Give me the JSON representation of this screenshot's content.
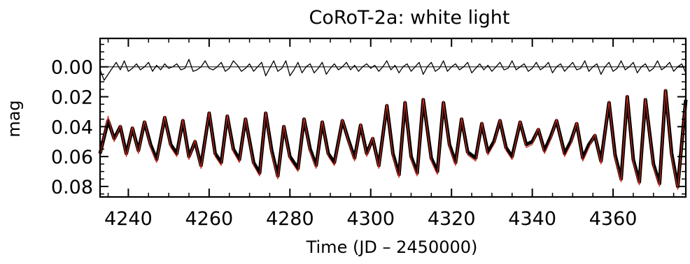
{
  "chart_data": {
    "type": "line",
    "title": "CoRoT-2a: white light",
    "xlabel": "Time (JD – 2450000)",
    "ylabel": "mag",
    "xlim": [
      4233,
      4378
    ],
    "ylim": [
      0.087,
      -0.019
    ],
    "y_inverted": true,
    "xticks": [
      "4240",
      "4260",
      "4280",
      "4300",
      "4320",
      "4340",
      "4360"
    ],
    "yticks": [
      "0.00",
      "0.02",
      "0.04",
      "0.06",
      "0.08"
    ],
    "grid": false,
    "series": [
      {
        "role": "light curve (observed)",
        "color": "#000000",
        "x": [
          4233,
          4235,
          4236.5,
          4238,
          4239.5,
          4241,
          4242.5,
          4244,
          4245.5,
          4247,
          4249,
          4250.5,
          4252,
          4253.5,
          4255,
          4256.5,
          4258,
          4260,
          4261.5,
          4263,
          4264.5,
          4266,
          4267.5,
          4269,
          4271,
          4272.5,
          4274,
          4275.5,
          4277,
          4278.5,
          4280,
          4282,
          4283.5,
          4285,
          4286.5,
          4288,
          4289.5,
          4291,
          4293,
          4294.5,
          4296,
          4297.5,
          4299,
          4300.5,
          4302,
          4304,
          4305.5,
          4307,
          4308.5,
          4310,
          4311.5,
          4313,
          4315,
          4316.5,
          4318,
          4319.5,
          4321,
          4322.5,
          4324,
          4326,
          4327.5,
          4329,
          4330.5,
          4332,
          4333.5,
          4335,
          4337,
          4338.5,
          4340,
          4341.5,
          4343,
          4344.5,
          4346,
          4348,
          4349.5,
          4351,
          4352.5,
          4354,
          4355.5,
          4357,
          4359,
          4360.5,
          4362,
          4363.5,
          4365,
          4366.5,
          4368,
          4370,
          4371.5,
          4373,
          4374.5,
          4376,
          4378
        ],
        "y": [
          0.058,
          0.036,
          0.048,
          0.04,
          0.058,
          0.041,
          0.056,
          0.037,
          0.052,
          0.062,
          0.034,
          0.052,
          0.058,
          0.036,
          0.06,
          0.05,
          0.066,
          0.031,
          0.058,
          0.064,
          0.033,
          0.055,
          0.062,
          0.035,
          0.064,
          0.071,
          0.031,
          0.056,
          0.073,
          0.04,
          0.06,
          0.068,
          0.035,
          0.055,
          0.066,
          0.037,
          0.058,
          0.064,
          0.036,
          0.049,
          0.061,
          0.039,
          0.058,
          0.048,
          0.066,
          0.026,
          0.058,
          0.072,
          0.024,
          0.06,
          0.071,
          0.022,
          0.061,
          0.07,
          0.024,
          0.052,
          0.064,
          0.035,
          0.057,
          0.061,
          0.038,
          0.057,
          0.05,
          0.036,
          0.054,
          0.06,
          0.037,
          0.052,
          0.05,
          0.042,
          0.056,
          0.047,
          0.036,
          0.058,
          0.05,
          0.038,
          0.061,
          0.052,
          0.046,
          0.063,
          0.024,
          0.059,
          0.075,
          0.02,
          0.062,
          0.077,
          0.022,
          0.065,
          0.078,
          0.016,
          0.058,
          0.08,
          0.022
        ]
      },
      {
        "role": "model fit",
        "color": "#d42a1c",
        "x": [
          4233,
          4235,
          4236.5,
          4238,
          4239.5,
          4241,
          4242.5,
          4244,
          4245.5,
          4247,
          4249,
          4250.5,
          4252,
          4253.5,
          4255,
          4256.5,
          4258,
          4260,
          4261.5,
          4263,
          4264.5,
          4266,
          4267.5,
          4269,
          4271,
          4272.5,
          4274,
          4275.5,
          4277,
          4278.5,
          4280,
          4282,
          4283.5,
          4285,
          4286.5,
          4288,
          4289.5,
          4291,
          4293,
          4294.5,
          4296,
          4297.5,
          4299,
          4300.5,
          4302,
          4304,
          4305.5,
          4307,
          4308.5,
          4310,
          4311.5,
          4313,
          4315,
          4316.5,
          4318,
          4319.5,
          4321,
          4322.5,
          4324,
          4326,
          4327.5,
          4329,
          4330.5,
          4332,
          4333.5,
          4335,
          4337,
          4338.5,
          4340,
          4341.5,
          4343,
          4344.5,
          4346,
          4348,
          4349.5,
          4351,
          4352.5,
          4354,
          4355.5,
          4357,
          4359,
          4360.5,
          4362,
          4363.5,
          4365,
          4366.5,
          4368,
          4370,
          4371.5,
          4373,
          4374.5,
          4376,
          4378
        ],
        "y": [
          0.06,
          0.033,
          0.05,
          0.039,
          0.06,
          0.04,
          0.058,
          0.036,
          0.054,
          0.064,
          0.033,
          0.054,
          0.06,
          0.035,
          0.062,
          0.049,
          0.068,
          0.03,
          0.06,
          0.066,
          0.032,
          0.057,
          0.064,
          0.034,
          0.066,
          0.073,
          0.03,
          0.058,
          0.075,
          0.039,
          0.062,
          0.07,
          0.034,
          0.057,
          0.068,
          0.036,
          0.06,
          0.066,
          0.035,
          0.05,
          0.063,
          0.038,
          0.06,
          0.047,
          0.068,
          0.025,
          0.06,
          0.074,
          0.023,
          0.062,
          0.073,
          0.021,
          0.063,
          0.072,
          0.023,
          0.054,
          0.066,
          0.034,
          0.059,
          0.063,
          0.037,
          0.059,
          0.052,
          0.035,
          0.056,
          0.062,
          0.036,
          0.054,
          0.052,
          0.041,
          0.058,
          0.049,
          0.035,
          0.06,
          0.052,
          0.037,
          0.063,
          0.054,
          0.045,
          0.065,
          0.023,
          0.061,
          0.077,
          0.019,
          0.064,
          0.079,
          0.021,
          0.067,
          0.08,
          0.015,
          0.06,
          0.082,
          0.021
        ]
      },
      {
        "role": "residuals",
        "color": "#000000",
        "x": [
          4233,
          4234,
          4235,
          4236,
          4237,
          4238,
          4239,
          4240,
          4241,
          4242,
          4243,
          4244,
          4245,
          4246,
          4247,
          4248,
          4249,
          4250,
          4251,
          4252,
          4253,
          4254,
          4255,
          4256,
          4257,
          4258,
          4259,
          4260,
          4261,
          4262,
          4263,
          4264,
          4265,
          4266,
          4267,
          4268,
          4269,
          4270,
          4271,
          4272,
          4273,
          4274,
          4275,
          4276,
          4277,
          4278,
          4279,
          4280,
          4281,
          4282,
          4283,
          4284,
          4285,
          4286,
          4287,
          4288,
          4289,
          4290,
          4291,
          4292,
          4293,
          4294,
          4295,
          4296,
          4297,
          4298,
          4299,
          4300,
          4301,
          4302,
          4303,
          4304,
          4305,
          4306,
          4307,
          4308,
          4309,
          4310,
          4311,
          4312,
          4313,
          4314,
          4315,
          4316,
          4317,
          4318,
          4319,
          4320,
          4321,
          4322,
          4323,
          4324,
          4325,
          4326,
          4327,
          4328,
          4329,
          4330,
          4331,
          4332,
          4333,
          4334,
          4335,
          4336,
          4337,
          4338,
          4339,
          4340,
          4341,
          4342,
          4343,
          4344,
          4345,
          4346,
          4347,
          4348,
          4349,
          4350,
          4351,
          4352,
          4353,
          4354,
          4355,
          4356,
          4357,
          4358,
          4359,
          4360,
          4361,
          4362,
          4363,
          4364,
          4365,
          4366,
          4367,
          4368,
          4369,
          4370,
          4371,
          4372,
          4373,
          4374,
          4375,
          4376,
          4377,
          4378
        ],
        "y": [
          0.002,
          0.009,
          0.005,
          0.001,
          -0.003,
          0.002,
          -0.004,
          0.003,
          0.001,
          -0.002,
          0.002,
          0.0,
          -0.003,
          0.003,
          -0.001,
          0.002,
          -0.002,
          0.001,
          0.0,
          -0.002,
          0.002,
          0.001,
          -0.005,
          0.003,
          0.002,
          0.0,
          -0.004,
          0.001,
          0.002,
          0.0,
          -0.003,
          0.003,
          0.001,
          -0.004,
          -0.001,
          0.003,
          0.001,
          -0.002,
          0.003,
          0.0,
          -0.003,
          0.006,
          0.001,
          -0.004,
          0.003,
          0.001,
          -0.004,
          0.006,
          0.002,
          -0.003,
          0.004,
          0.0,
          -0.002,
          0.004,
          0.001,
          -0.003,
          0.005,
          0.001,
          -0.002,
          0.002,
          0.0,
          -0.003,
          0.002,
          -0.001,
          0.003,
          0.0,
          -0.002,
          0.001,
          -0.001,
          0.003,
          0.0,
          -0.004,
          0.002,
          -0.001,
          0.004,
          0.0,
          -0.002,
          0.003,
          0.0,
          -0.003,
          0.005,
          0.0,
          -0.003,
          0.003,
          0.001,
          -0.004,
          0.003,
          0.0,
          -0.002,
          0.002,
          0.0,
          -0.003,
          0.004,
          0.001,
          -0.002,
          0.002,
          -0.001,
          0.003,
          0.0,
          -0.003,
          0.002,
          0.001,
          -0.004,
          0.002,
          0.0,
          -0.002,
          0.003,
          0.001,
          -0.003,
          0.002,
          0.0,
          -0.003,
          0.004,
          0.0,
          -0.002,
          0.003,
          0.0,
          -0.003,
          0.002,
          0.001,
          -0.004,
          0.003,
          0.0,
          -0.002,
          0.005,
          0.0,
          -0.003,
          0.003,
          0.001,
          -0.004,
          0.002,
          0.0,
          -0.003,
          0.004,
          0.0,
          -0.002,
          0.003,
          0.001,
          -0.004,
          0.002,
          0.0,
          -0.003,
          0.003,
          0.0,
          -0.002,
          0.004
        ]
      }
    ],
    "reference_lines": [
      {
        "axis": "y",
        "value": 0.0,
        "color": "#000000"
      }
    ]
  }
}
